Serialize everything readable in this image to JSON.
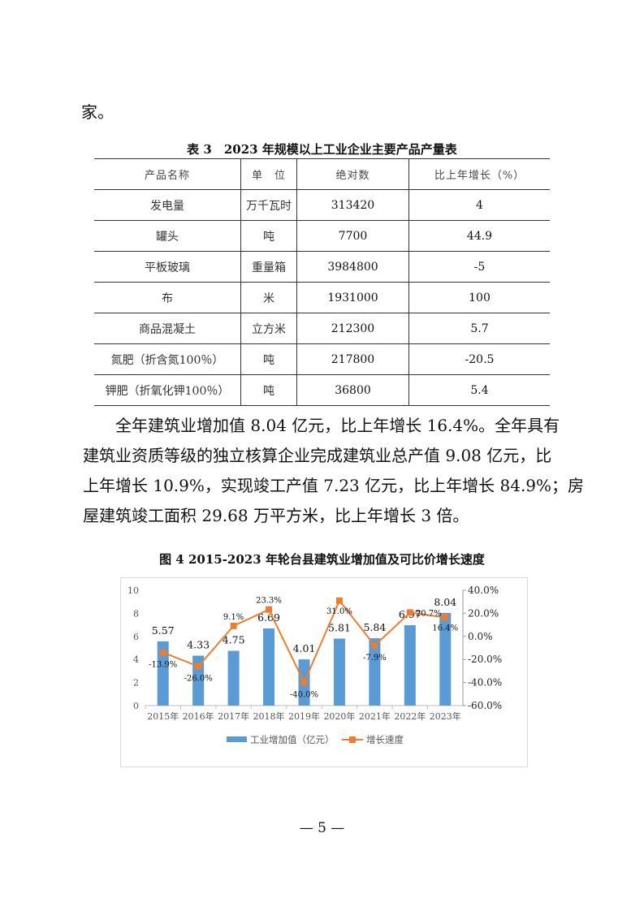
{
  "fragment": "家。",
  "table": {
    "caption": "表 3　2023 年规模以上工业企业主要产品产量表",
    "headers": [
      "产品名称",
      "单　位",
      "绝对数",
      "比上年增长（%）"
    ],
    "rows": [
      [
        "发电量",
        "万千瓦时",
        "313420",
        "4"
      ],
      [
        "罐头",
        "吨",
        "7700",
        "44.9"
      ],
      [
        "平板玻璃",
        "重量箱",
        "3984800",
        "-5"
      ],
      [
        "布",
        "米",
        "1931000",
        "100"
      ],
      [
        "商品混凝土",
        "立方米",
        "212300",
        "5.7"
      ],
      [
        "氮肥（折含氮100％）",
        "吨",
        "217800",
        "-20.5"
      ],
      [
        "钾肥（折氧化钾100％）",
        "吨",
        "36800",
        "5.4"
      ]
    ]
  },
  "paragraph": [
    "　　全年建筑业增加值 8.04 亿元，比上年增长 16.4%。全年具有",
    "建筑业资质等级的独立核算企业完成建筑业总产值 9.08 亿元，比",
    "上年增长 10.9%，实现竣工产值 7.23 亿元，比上年增长 84.9%；房",
    "屋建筑竣工面积 29.68 万平方米，比上年增长 3 倍。"
  ],
  "chart_title": "图 4 2015-2023 年轮台县建筑业增加值及可比价增长速度",
  "chart_data": {
    "type": "bar+line",
    "categories": [
      "2015年",
      "2016年",
      "2017年",
      "2018年",
      "2019年",
      "2020年",
      "2021年",
      "2022年",
      "2023年"
    ],
    "series": [
      {
        "name": "工业增加值（亿元）",
        "type": "bar",
        "axis": "left",
        "color": "#5b9bd5",
        "values": [
          5.57,
          4.33,
          4.75,
          6.69,
          4.01,
          5.81,
          5.84,
          6.97,
          8.04
        ],
        "labels": [
          "5.57",
          "4.33",
          "4.75",
          "6.69",
          "4.01",
          "5.81",
          "5.84",
          "6.97",
          "8.04"
        ]
      },
      {
        "name": "增长速度",
        "type": "line",
        "axis": "right",
        "color": "#ed7d31",
        "values": [
          -13.9,
          -26.0,
          9.1,
          23.3,
          -40.0,
          31.0,
          -7.9,
          20.7,
          16.4
        ],
        "labels": [
          "-13.9%",
          "-26.0%",
          "9.1%",
          "23.3%",
          "-40.0%",
          "31.0%",
          "-7.9%",
          "20.7%",
          "16.4%"
        ]
      }
    ],
    "left_axis": {
      "range": [
        0,
        10
      ],
      "ticks": [
        "0",
        "2",
        "4",
        "6",
        "8",
        "10"
      ]
    },
    "right_axis": {
      "range": [
        -60,
        40
      ],
      "ticks": [
        "-60.0%",
        "-40.0%",
        "-20.0%",
        "0.0%",
        "20.0%",
        "40.0%"
      ]
    },
    "legend": "bottom",
    "grid": false
  },
  "page_number": "— 5 —"
}
